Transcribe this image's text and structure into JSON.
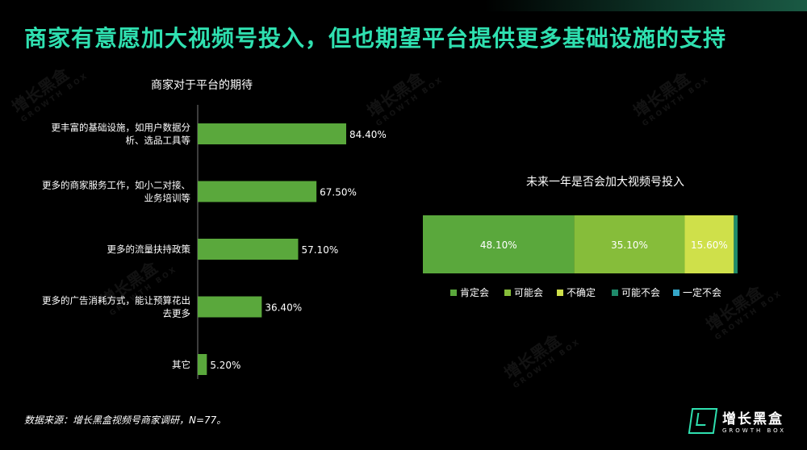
{
  "title": "商家有意愿加大视频号投入，但也期望平台提供更多基础设施的支持",
  "footnote": "数据来源：增长黑盒视频号商家调研，N=77。",
  "logo": {
    "cn": "增长黑盒",
    "en": "GROWTH BOX"
  },
  "watermark": {
    "cn": "增长黑盒",
    "en": "GROWTH BOX"
  },
  "colors": {
    "bar_green": "#5aa83c",
    "seg_yes": "#5aa83c",
    "seg_maybe": "#86bd3a",
    "seg_unsure": "#cfe04a",
    "seg_maybe_no": "#1e8a6a",
    "seg_no": "#35a6c8",
    "title": "#2fe0b0"
  },
  "chart_data": [
    {
      "type": "bar",
      "orientation": "horizontal",
      "title": "商家对于平台的期待",
      "categories": [
        [
          "更丰富的基础设施，如用户数据分",
          "析、选品工具等"
        ],
        [
          "更多的商家服务工作，如小二对接、",
          "业务培训等"
        ],
        [
          "更多的流量扶持政策"
        ],
        [
          "更多的广告消耗方式，能让预算花出",
          "去更多"
        ],
        [
          "其它"
        ]
      ],
      "values": [
        84.4,
        67.5,
        57.1,
        36.4,
        5.2
      ],
      "value_labels": [
        "84.40%",
        "67.50%",
        "57.10%",
        "36.40%",
        "5.20%"
      ],
      "xlim": [
        0,
        100
      ]
    },
    {
      "type": "bar",
      "orientation": "horizontal",
      "stacked": true,
      "title": "未来一年是否会加大视频号投入",
      "series": [
        {
          "name": "肯定会",
          "value": 48.1,
          "label": "48.10%",
          "color": "#5aa83c"
        },
        {
          "name": "可能会",
          "value": 35.1,
          "label": "35.10%",
          "color": "#86bd3a"
        },
        {
          "name": "不确定",
          "value": 15.6,
          "label": "15.60%",
          "color": "#cfe04a"
        },
        {
          "name": "可能不会",
          "value": 1.2,
          "label": "",
          "color": "#1e8a6a"
        },
        {
          "name": "一定不会",
          "value": 0,
          "label": "",
          "color": "#35a6c8"
        }
      ],
      "legend": "bottom"
    }
  ]
}
